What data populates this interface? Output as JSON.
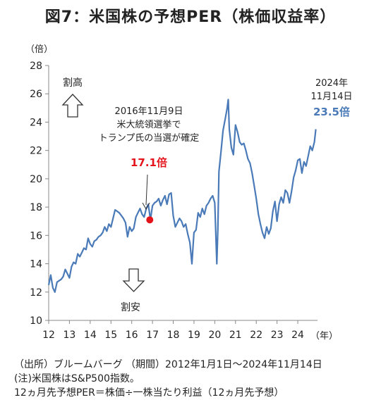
{
  "title": "図7：米国株の予想PER（株価収益率）",
  "chart_data": {
    "type": "line",
    "ylabel": "（倍）",
    "xlabel": "（年）",
    "ylim": [
      10,
      28
    ],
    "yticks": [
      10,
      12,
      14,
      16,
      18,
      20,
      22,
      24,
      26,
      28
    ],
    "xlim": [
      12,
      24.95
    ],
    "xticks": [
      12,
      13,
      14,
      15,
      16,
      17,
      18,
      19,
      20,
      21,
      22,
      23,
      24
    ],
    "grid": false,
    "series_color": "#4a7ab8",
    "series": [
      {
        "x": [
          12.0,
          12.1,
          12.2,
          12.3,
          12.4,
          12.5,
          12.6,
          12.7,
          12.8,
          12.9,
          13.0,
          13.1,
          13.2,
          13.3,
          13.4,
          13.5,
          13.6,
          13.7,
          13.8,
          13.9,
          14.0,
          14.1,
          14.2,
          14.3,
          14.4,
          14.5,
          14.6,
          14.7,
          14.8,
          14.9,
          15.0,
          15.1,
          15.2,
          15.3,
          15.4,
          15.5,
          15.6,
          15.7,
          15.8,
          15.9,
          16.0,
          16.1,
          16.2,
          16.3,
          16.4,
          16.5,
          16.6,
          16.7,
          16.8,
          16.9,
          17.0,
          17.1,
          17.2,
          17.3,
          17.4,
          17.5,
          17.6,
          17.7,
          17.8,
          17.9,
          18.0,
          18.1,
          18.2,
          18.3,
          18.4,
          18.5,
          18.6,
          18.7,
          18.8,
          18.9,
          19.0,
          19.1,
          19.2,
          19.3,
          19.4,
          19.5,
          19.6,
          19.7,
          19.8,
          19.9,
          20.0,
          20.1,
          20.15,
          20.2,
          20.3,
          20.4,
          20.5,
          20.6,
          20.65,
          20.7,
          20.8,
          20.9,
          21.0,
          21.1,
          21.2,
          21.3,
          21.4,
          21.5,
          21.6,
          21.7,
          21.8,
          21.9,
          22.0,
          22.1,
          22.2,
          22.3,
          22.4,
          22.5,
          22.6,
          22.7,
          22.8,
          22.9,
          23.0,
          23.1,
          23.2,
          23.3,
          23.4,
          23.5,
          23.6,
          23.7,
          23.8,
          23.9,
          24.0,
          24.1,
          24.2,
          24.3,
          24.4,
          24.5,
          24.6,
          24.7,
          24.8,
          24.87
        ],
        "values": [
          12.5,
          13.2,
          12.3,
          12.0,
          12.7,
          12.8,
          12.9,
          13.1,
          13.6,
          13.3,
          13.0,
          13.8,
          14.1,
          14.0,
          14.7,
          14.5,
          14.8,
          15.1,
          15.0,
          15.8,
          15.4,
          15.2,
          15.6,
          15.7,
          15.9,
          16.0,
          16.2,
          16.6,
          16.3,
          16.8,
          16.6,
          17.2,
          17.8,
          17.7,
          17.6,
          17.4,
          17.2,
          16.9,
          15.9,
          16.6,
          16.3,
          16.5,
          17.3,
          17.6,
          17.9,
          17.5,
          17.3,
          17.9,
          18.2,
          17.1,
          18.1,
          18.3,
          18.4,
          18.6,
          18.1,
          18.5,
          18.8,
          18.2,
          18.9,
          19.0,
          17.4,
          16.6,
          16.9,
          17.2,
          17.0,
          16.6,
          16.8,
          16.1,
          15.5,
          14.0,
          16.2,
          16.4,
          17.6,
          17.3,
          17.9,
          17.5,
          18.1,
          18.3,
          18.6,
          18.8,
          18.3,
          14.0,
          16.5,
          20.5,
          21.9,
          23.4,
          24.2,
          25.0,
          25.6,
          23.5,
          22.2,
          21.7,
          23.8,
          23.3,
          22.6,
          22.4,
          22.5,
          22.0,
          21.4,
          21.1,
          20.4,
          19.5,
          18.6,
          17.5,
          16.8,
          16.2,
          15.8,
          16.6,
          16.1,
          16.5,
          17.7,
          18.4,
          17.0,
          18.2,
          18.7,
          18.3,
          19.2,
          19.0,
          18.3,
          19.1,
          20.1,
          20.6,
          21.3,
          21.4,
          20.4,
          21.2,
          20.9,
          21.6,
          22.3,
          22.0,
          22.6,
          23.5
        ]
      }
    ],
    "highlight_point": {
      "x": 16.87,
      "y": 17.1,
      "color": "#e4131a"
    },
    "annotations": {
      "event_line1": "2016年11月9日",
      "event_line2": "米大統領選挙で",
      "event_line3": "トランプ氏の当選が確定",
      "event_value": "17.1倍",
      "latest_line1": "2024年",
      "latest_line2": "11月14日",
      "latest_value": "23.5倍",
      "up_label": "割高",
      "down_label": "割安"
    }
  },
  "notes": {
    "line1": "（出所）ブルームバーグ （期間）2012年1月1日～2024年11月14日",
    "line2": "(注)米国株はS&P500指数。",
    "line3": "12ヵ月先予想PER＝株価÷一株当たり利益（12ヵ月先予想）"
  }
}
